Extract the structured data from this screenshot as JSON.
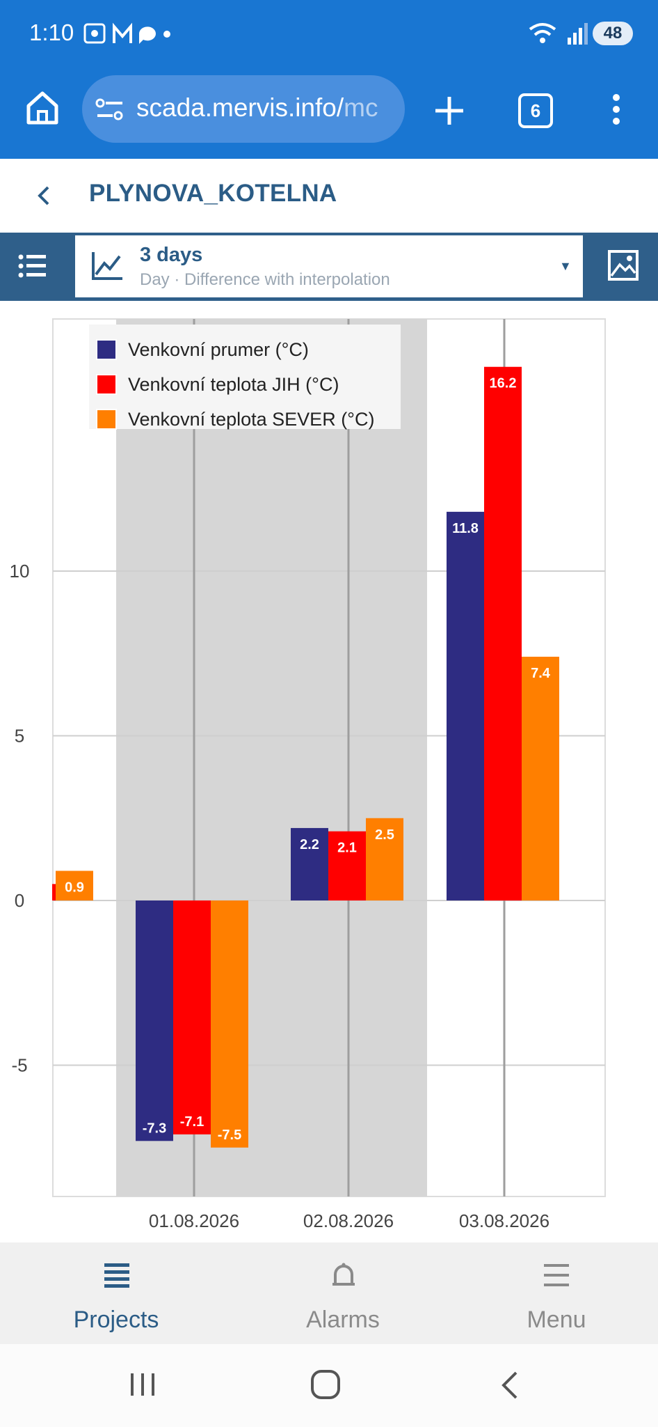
{
  "status_bar": {
    "time": "1:10",
    "battery": "48"
  },
  "browser": {
    "url_main": "scada.mervis.info/",
    "url_dim": "mc",
    "tab_count": "6"
  },
  "page": {
    "title": "PLYNOVA_KOTELNA"
  },
  "toolbar": {
    "range_title": "3 days",
    "range_subtitle": "Day · Difference with interpolation"
  },
  "colors": {
    "brand_blue": "#1976d2",
    "toolbar": "#2f5f8a",
    "series1": "#2e2c82",
    "series2": "#ff0000",
    "series3": "#ff7f00"
  },
  "chart_data": {
    "type": "bar",
    "categories": [
      "",
      "01.08.2026",
      "02.08.2026",
      "03.08.2026"
    ],
    "series": [
      {
        "name": "Venkovní prumer (°C)",
        "values": [
          null,
          -7.3,
          2.2,
          11.8
        ]
      },
      {
        "name": "Venkovní teplota JIH (°C)",
        "values": [
          null,
          -7.1,
          2.1,
          16.2
        ]
      },
      {
        "name": "Venkovní teplota SEVER (°C)",
        "values": [
          0.9,
          -7.5,
          2.5,
          7.4
        ]
      }
    ],
    "y_ticks": [
      "-5",
      "0",
      "5",
      "10"
    ],
    "ylim": [
      -9,
      17.5
    ],
    "grid": true,
    "legend_position": "top-left"
  },
  "bottom_nav": {
    "projects": "Projects",
    "alarms": "Alarms",
    "menu": "Menu"
  }
}
